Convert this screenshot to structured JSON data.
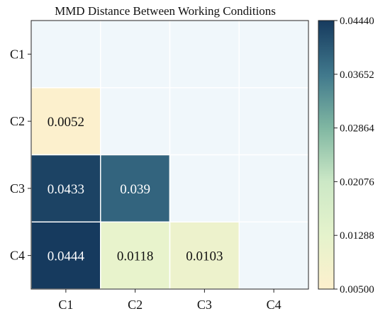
{
  "chart_data": {
    "type": "heatmap",
    "title": "MMD Distance Between Working Conditions",
    "xlabel": "",
    "ylabel": "",
    "x_categories": [
      "C1",
      "C2",
      "C3",
      "C4"
    ],
    "y_categories": [
      "C1",
      "C2",
      "C3",
      "C4"
    ],
    "values": [
      [
        null,
        null,
        null,
        null
      ],
      [
        0.0052,
        null,
        null,
        null
      ],
      [
        0.0433,
        0.039,
        null,
        null
      ],
      [
        0.0444,
        0.0118,
        0.0103,
        null
      ]
    ],
    "cell_labels": [
      [
        "",
        "",
        "",
        ""
      ],
      [
        "0.0052",
        "",
        "",
        ""
      ],
      [
        "0.0433",
        "0.039",
        "",
        ""
      ],
      [
        "0.0444",
        "0.0118",
        "0.0103",
        ""
      ]
    ],
    "empty_cell_color": "#f0f7fb",
    "colorbar": {
      "min": 0.005,
      "max": 0.0444,
      "tick_values": [
        0.005,
        0.01288,
        0.02076,
        0.02864,
        0.03652,
        0.0444
      ],
      "tick_labels": [
        "0.00500",
        "0.01288",
        "0.02076",
        "0.02864",
        "0.03652",
        "0.04440"
      ],
      "color_stops": [
        "#fdf0cd",
        "#e5f3cc",
        "#cce8c6",
        "#80b7a2",
        "#40788c",
        "#163a5e"
      ],
      "position": "right"
    },
    "grid": false
  }
}
